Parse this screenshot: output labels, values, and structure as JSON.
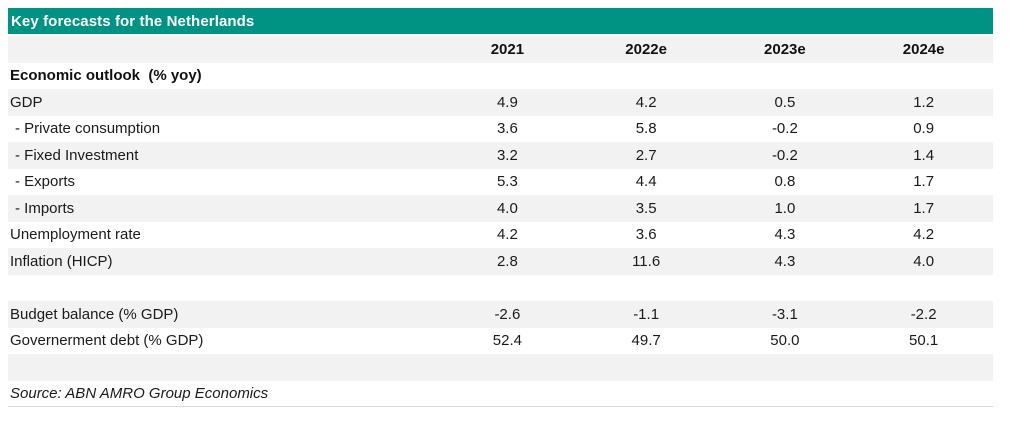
{
  "title": "Key forecasts for the Netherlands",
  "colors": {
    "accent_teal": "#009384",
    "stripe_gray": "#f2f2f2",
    "title_text": "#ffffff",
    "rule_gray": "#d9d9d9"
  },
  "chart_data": {
    "type": "table",
    "title": "Key forecasts for the Netherlands",
    "columns": [
      "2021",
      "2022e",
      "2023e",
      "2024e"
    ],
    "section_header": "Economic outlook  (% yoy)",
    "rows": [
      {
        "label": "GDP",
        "values": [
          "4.9",
          "4.2",
          "0.5",
          "1.2"
        ]
      },
      {
        "label": "- Private consumption",
        "values": [
          "3.6",
          "5.8",
          "-0.2",
          "0.9"
        ]
      },
      {
        "label": "- Fixed Investment",
        "values": [
          "3.2",
          "2.7",
          "-0.2",
          "1.4"
        ]
      },
      {
        "label": "- Exports",
        "values": [
          "5.3",
          "4.4",
          "0.8",
          "1.7"
        ]
      },
      {
        "label": "- Imports",
        "values": [
          "4.0",
          "3.5",
          "1.0",
          "1.7"
        ]
      },
      {
        "label": "Unemployment rate",
        "values": [
          "4.2",
          "3.6",
          "4.3",
          "4.2"
        ]
      },
      {
        "label": "Inflation (HICP)",
        "values": [
          "2.8",
          "11.6",
          "4.3",
          "4.0"
        ]
      },
      {
        "label": "Budget balance (% GDP)",
        "values": [
          "-2.6",
          "-1.1",
          "-3.1",
          "-2.2"
        ]
      },
      {
        "label": "Governerment debt (% GDP)",
        "values": [
          "52.4",
          "49.7",
          "50.0",
          "50.1"
        ]
      }
    ],
    "source": "Source: ABN AMRO Group Economics",
    "layout": {
      "legend": "none",
      "grid": "row-stripes",
      "value_alignment": "center"
    }
  }
}
